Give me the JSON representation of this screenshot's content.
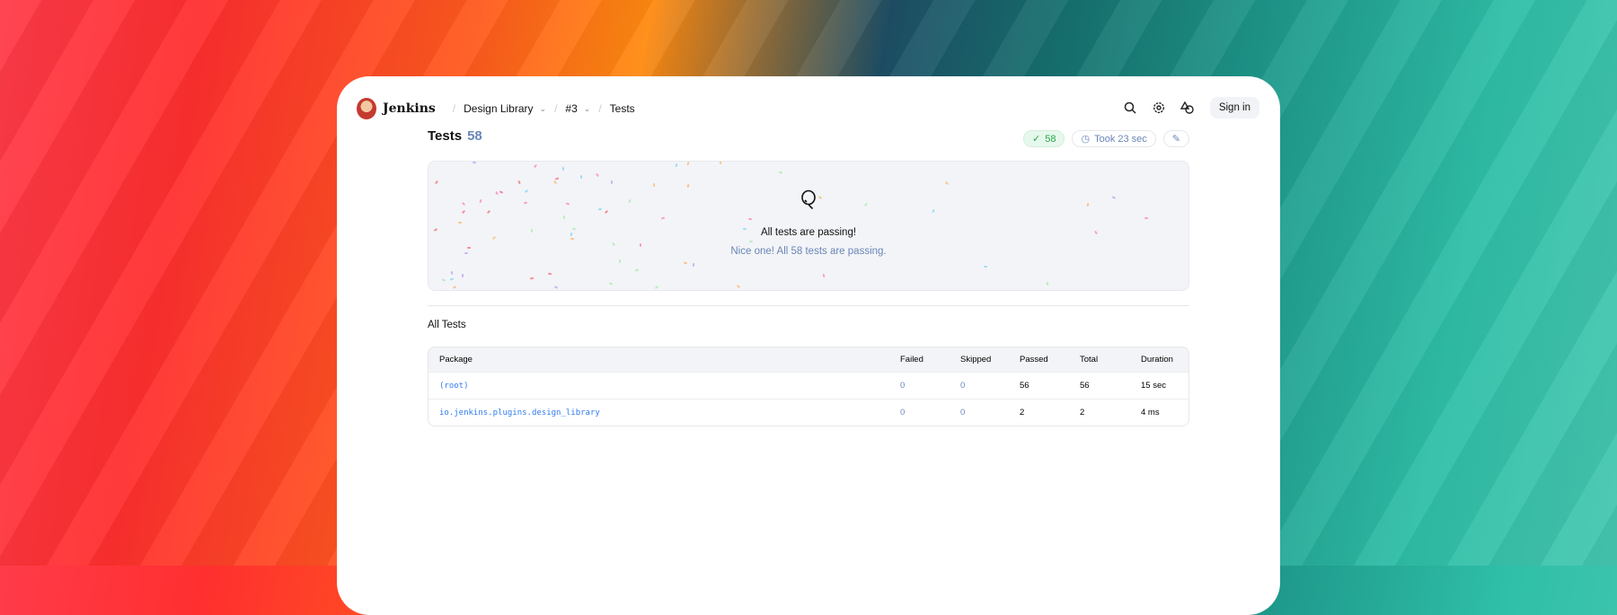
{
  "header": {
    "brand": "Jenkins",
    "breadcrumbs": [
      "Design Library",
      "#3",
      "Tests"
    ],
    "sign_in": "Sign in",
    "icons": [
      "search-icon",
      "gear-icon",
      "theme-icon"
    ]
  },
  "page": {
    "title": "Tests",
    "count": "58",
    "badges": {
      "passed": "58",
      "duration": "Took 23 sec"
    }
  },
  "banner": {
    "title": "All tests are passing!",
    "subtitle": "Nice one! All 58 tests are passing."
  },
  "section": {
    "title": "All Tests"
  },
  "table": {
    "headers": [
      "Package",
      "Failed",
      "Skipped",
      "Passed",
      "Total",
      "Duration"
    ],
    "rows": [
      [
        "(root)",
        "0",
        "0",
        "56",
        "56",
        "15 sec"
      ],
      [
        "io.jenkins.plugins.design_library",
        "0",
        "0",
        "2",
        "2",
        "4 ms"
      ]
    ]
  },
  "colors": {
    "accent": "#2f7bf0",
    "muted": "#6a86b8",
    "success": "#27a548"
  }
}
